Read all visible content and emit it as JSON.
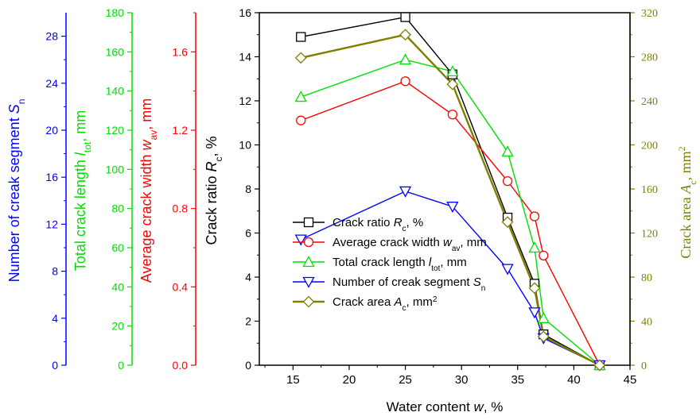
{
  "chart_data": {
    "type": "line",
    "xlabel": "Water content w, %",
    "xlim": [
      12,
      45
    ],
    "x_ticks": [
      15,
      20,
      25,
      30,
      35,
      40,
      45
    ],
    "x": [
      15.7,
      25.0,
      29.2,
      34.1,
      36.5,
      37.3,
      42.3
    ],
    "axes": [
      {
        "id": "sn",
        "label": "Number of creak segment Sn",
        "color": "#0000ff",
        "ylim": [
          0,
          30
        ],
        "ticks": [
          "0",
          "4",
          "8",
          "12",
          "16",
          "20",
          "24",
          "28"
        ]
      },
      {
        "id": "ltot",
        "label": "Total crack length ltot, mm",
        "color": "#00e000",
        "ylim": [
          0,
          180
        ],
        "ticks": [
          "0",
          "20",
          "40",
          "60",
          "80",
          "100",
          "120",
          "140",
          "160",
          "180"
        ]
      },
      {
        "id": "wav",
        "label": "Average crack width wav, mm",
        "color": "#ff0000",
        "ylim": [
          0,
          1.8
        ],
        "ticks": [
          "0.0",
          "0.4",
          "0.8",
          "1.2",
          "1.6"
        ]
      },
      {
        "id": "rc",
        "label": "Crack ratio Rc, %",
        "color": "#000000",
        "ylim": [
          0,
          16
        ],
        "ticks": [
          "0",
          "2",
          "4",
          "6",
          "8",
          "10",
          "12",
          "14",
          "16"
        ]
      },
      {
        "id": "ac",
        "label": "Crack area Ac, mm2",
        "color": "#808000",
        "ylim": [
          0,
          320
        ],
        "ticks": [
          "0",
          "40",
          "80",
          "120",
          "160",
          "200",
          "240",
          "280",
          "320"
        ]
      }
    ],
    "series": [
      {
        "name": "Crack ratio Rc, %",
        "axis": "rc",
        "color": "#000000",
        "marker": "square",
        "values": [
          14.9,
          15.8,
          13.2,
          6.7,
          3.7,
          1.4,
          0.0
        ]
      },
      {
        "name": "Average crack width wav, mm",
        "axis": "wav",
        "color": "#ff0000",
        "marker": "circle",
        "values": [
          1.25,
          1.45,
          1.28,
          0.94,
          0.76,
          0.56,
          0.0
        ]
      },
      {
        "name": "Total crack length ltot, mm",
        "axis": "ltot",
        "color": "#00e000",
        "marker": "triangle-up",
        "values": [
          137,
          156,
          150,
          109,
          60,
          24,
          0
        ]
      },
      {
        "name": "Number of creak segment Sn",
        "axis": "sn",
        "color": "#0000ff",
        "marker": "triangle-down",
        "values": [
          10.7,
          14.8,
          13.5,
          8.2,
          4.5,
          2.3,
          0.0
        ]
      },
      {
        "name": "Crack area Ac, mm2",
        "axis": "ac",
        "color": "#808000",
        "marker": "diamond",
        "values": [
          279,
          300,
          255,
          130,
          70,
          26,
          0
        ]
      }
    ],
    "legend": [
      {
        "text": "Crack ratio ",
        "it": "R",
        "sub": "c",
        "tail": ", %"
      },
      {
        "text": "Average crack width ",
        "it": "w",
        "sub": "av",
        "tail": ", mm"
      },
      {
        "text": "Total crack length ",
        "it": "l",
        "sub": "tot",
        "tail": ", mm"
      },
      {
        "text": "Number of creak segment ",
        "it": "S",
        "sub": "n",
        "tail": ""
      },
      {
        "text": "Crack area ",
        "it": "A",
        "sub": "c",
        "tail": ", mm",
        "sup": "2"
      }
    ],
    "legend_position": "lower-left",
    "grid": false
  }
}
